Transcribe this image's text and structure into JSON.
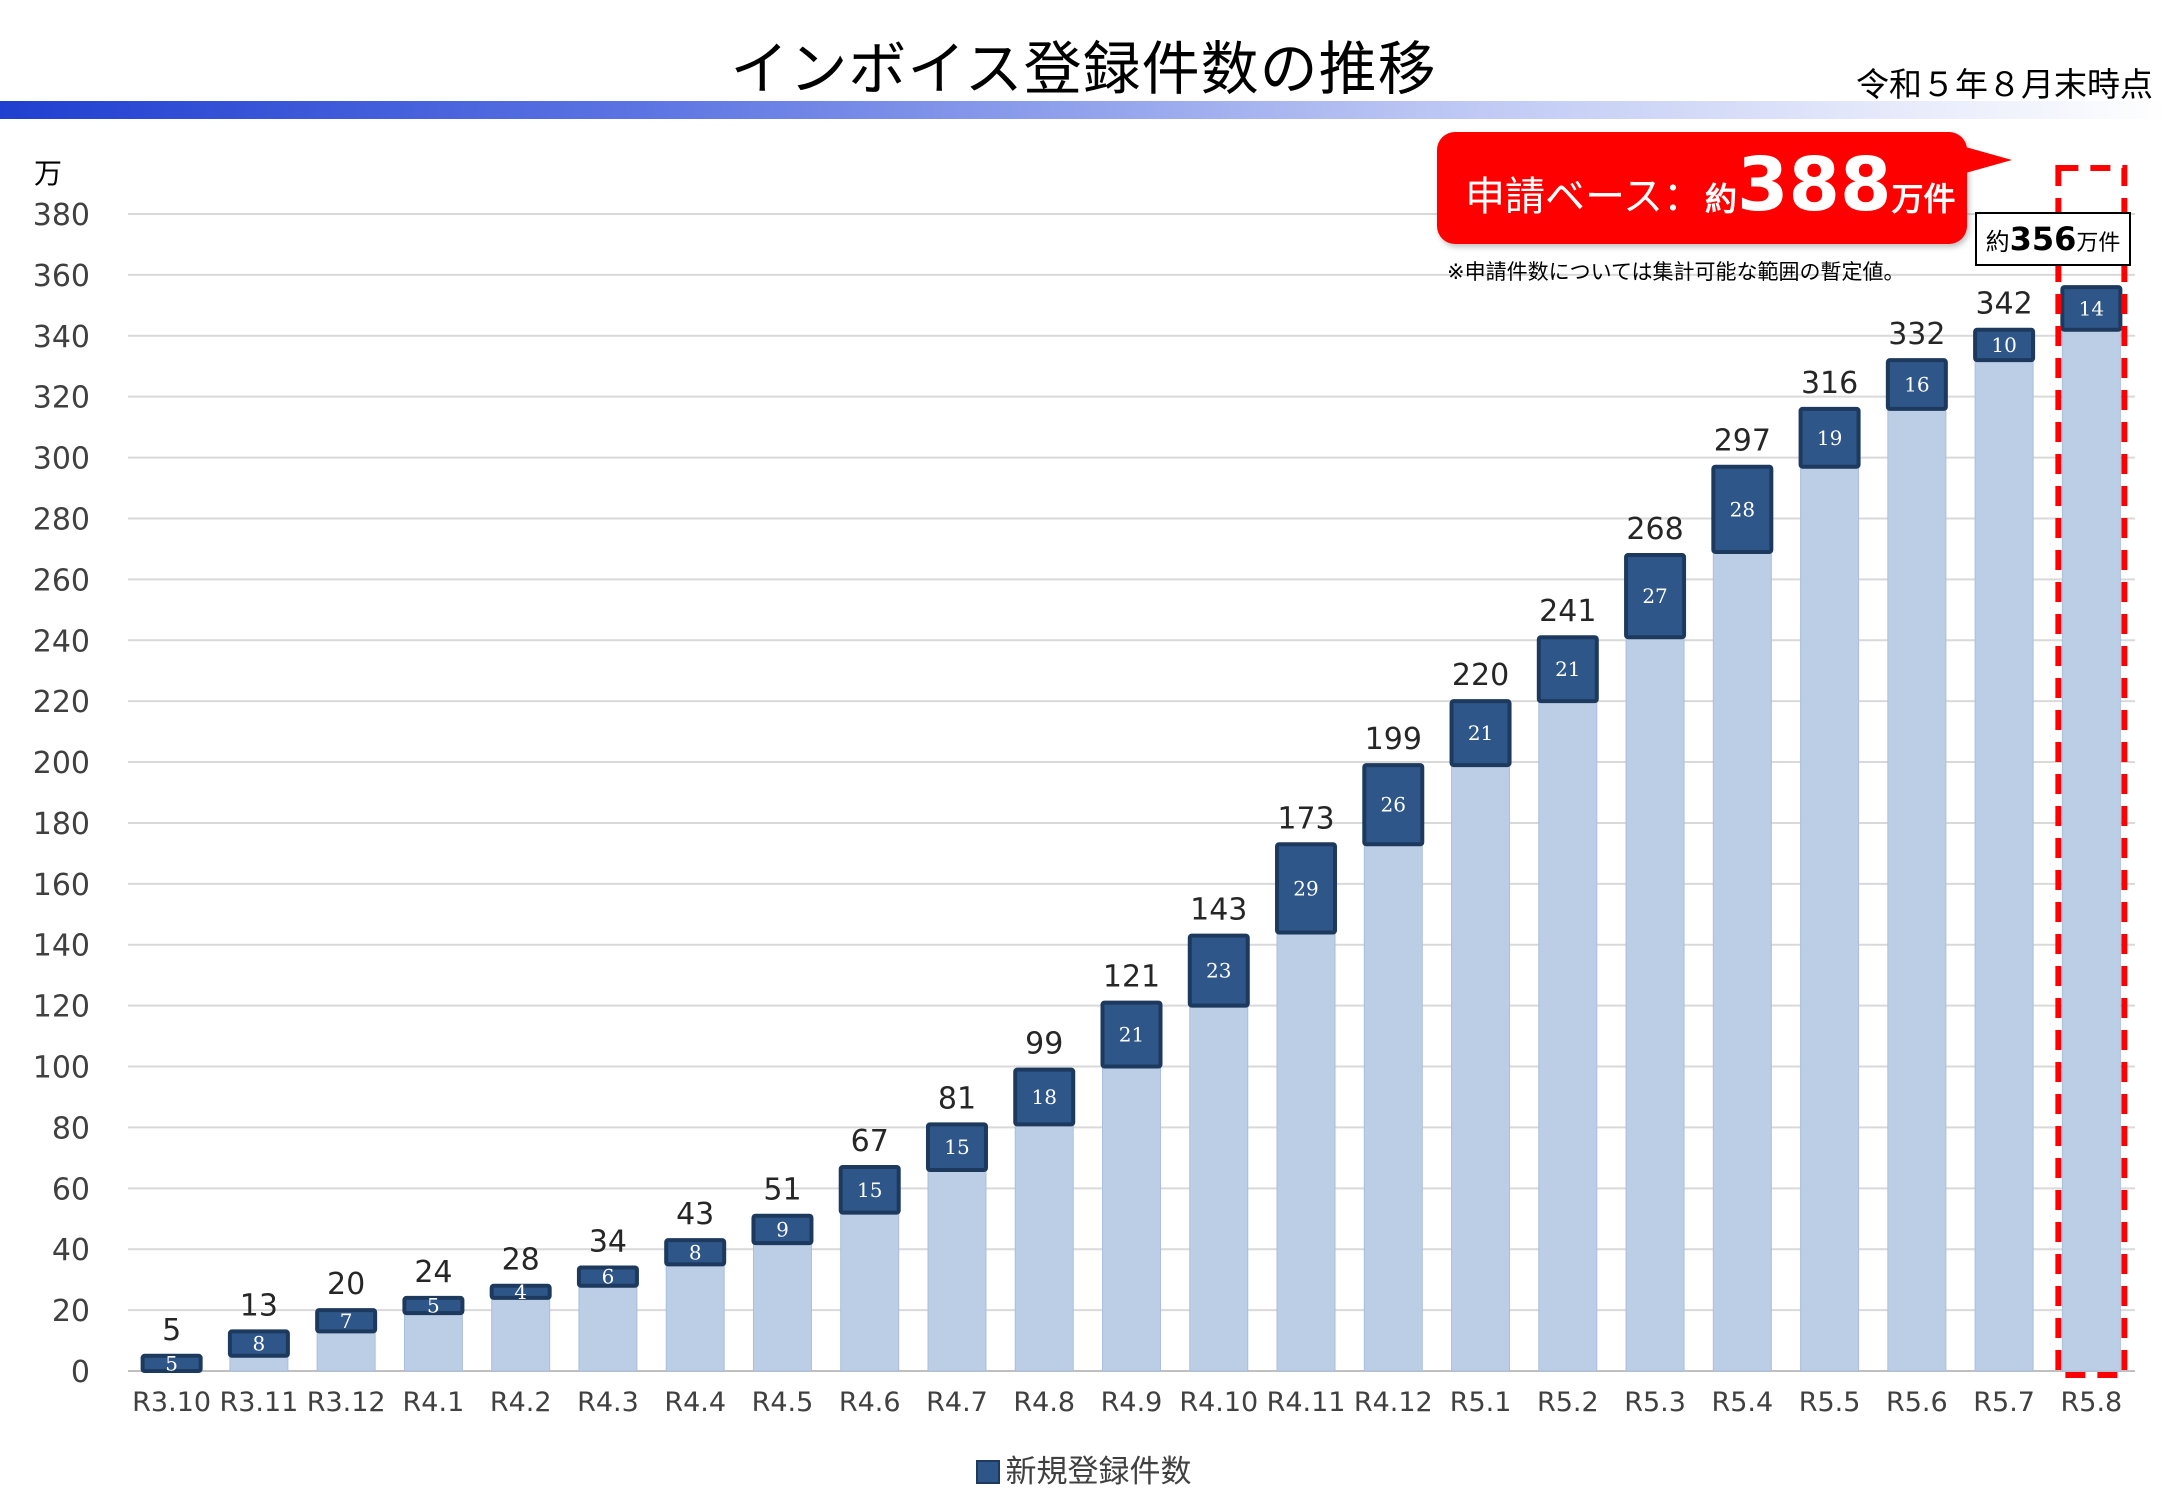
{
  "header": {
    "title": "インボイス登録件数の推移",
    "as_of": "令和５年８月末時点"
  },
  "callout": {
    "label": "申請ベース：",
    "prefix": "約",
    "value": "388",
    "suffix": "万件",
    "note": "※申請件数については集計可能な範囲の暫定値。"
  },
  "highlight_box": {
    "prefix": "約",
    "value": "356",
    "suffix": "万件"
  },
  "colors": {
    "cumulative_bar": "#bccde6",
    "new_segment": "#2e5688",
    "highlight": "#ff0000",
    "top_bar_gradient": "#1f3fd0"
  },
  "chart_data": {
    "type": "bar",
    "stacked": true,
    "unit_label": "万",
    "categories": [
      "R3.10",
      "R3.11",
      "R3.12",
      "R4.1",
      "R4.2",
      "R4.3",
      "R4.4",
      "R4.5",
      "R4.6",
      "R4.7",
      "R4.8",
      "R4.9",
      "R4.10",
      "R4.11",
      "R4.12",
      "R5.1",
      "R5.2",
      "R5.3",
      "R5.4",
      "R5.5",
      "R5.6",
      "R5.7",
      "R5.8"
    ],
    "totals": [
      5,
      13,
      20,
      24,
      28,
      34,
      43,
      51,
      67,
      81,
      99,
      121,
      143,
      173,
      199,
      220,
      241,
      268,
      297,
      316,
      332,
      342,
      356
    ],
    "new_registrations": [
      5,
      8,
      7,
      5,
      4,
      6,
      8,
      9,
      15,
      15,
      18,
      21,
      23,
      29,
      26,
      21,
      21,
      27,
      28,
      19,
      16,
      10,
      14
    ],
    "total_labels_shown": [
      "5",
      "13",
      "20",
      "24",
      "28",
      "34",
      "43",
      "51",
      "67",
      "81",
      "99",
      "121",
      "143",
      "173",
      "199",
      "220",
      "241",
      "268",
      "297",
      "316",
      "332",
      "342",
      ""
    ],
    "series": [
      {
        "name": "新規登録件数",
        "values": [
          5,
          8,
          7,
          5,
          4,
          6,
          8,
          9,
          15,
          15,
          18,
          21,
          23,
          29,
          26,
          21,
          21,
          27,
          28,
          19,
          16,
          10,
          14
        ]
      }
    ],
    "ylim": [
      0,
      380
    ],
    "yticks": [
      0,
      20,
      40,
      60,
      80,
      100,
      120,
      140,
      160,
      180,
      200,
      220,
      240,
      260,
      280,
      300,
      320,
      340,
      360,
      380
    ],
    "grid": true,
    "legend_position": "bottom",
    "highlighted_category": "R5.8"
  }
}
